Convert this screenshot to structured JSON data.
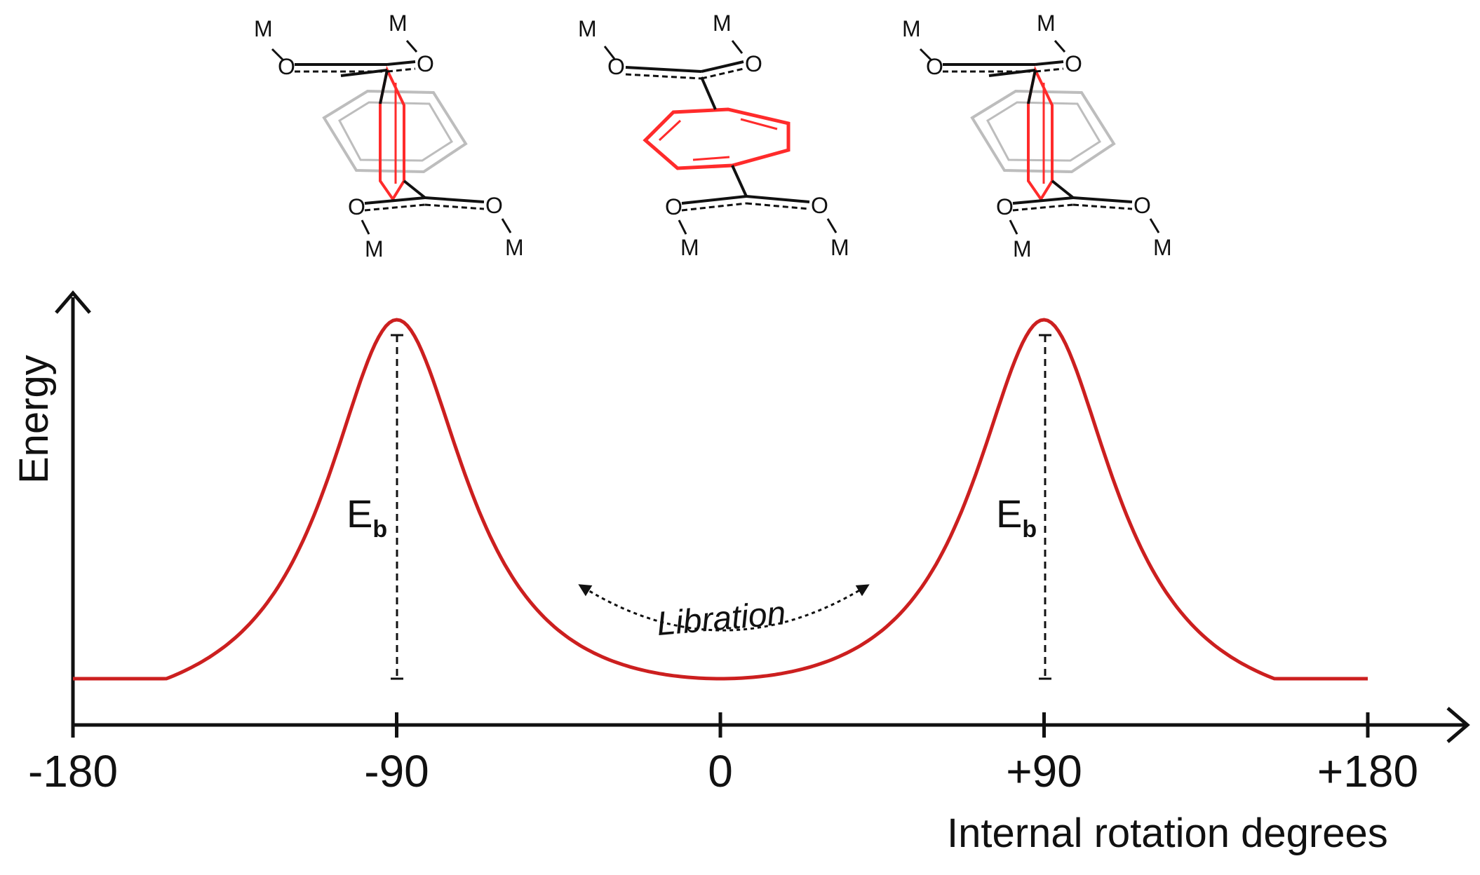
{
  "axes": {
    "x_title": "Internal rotation degrees",
    "y_title": "Energy",
    "ticks": [
      {
        "value": -180,
        "label": "-180"
      },
      {
        "value": -90,
        "label": "-90"
      },
      {
        "value": 0,
        "label": "0"
      },
      {
        "value": 90,
        "label": "+90"
      },
      {
        "value": 180,
        "label": "+180"
      }
    ]
  },
  "annotations": {
    "barrier_label": "E",
    "barrier_subscript": "b",
    "libration_label": "Libration"
  },
  "atoms": {
    "metal": "M",
    "oxygen": "O"
  },
  "structures": [
    {
      "rotation_deg": -90,
      "ring": "perpendicular"
    },
    {
      "rotation_deg": 0,
      "ring": "planar"
    },
    {
      "rotation_deg": 90,
      "ring": "perpendicular"
    }
  ],
  "colors": {
    "curve": "#cc1f1f",
    "ring_highlight": "#ff2b2b",
    "ring_ghost": "#bdbdbd",
    "ink": "#111111"
  }
}
